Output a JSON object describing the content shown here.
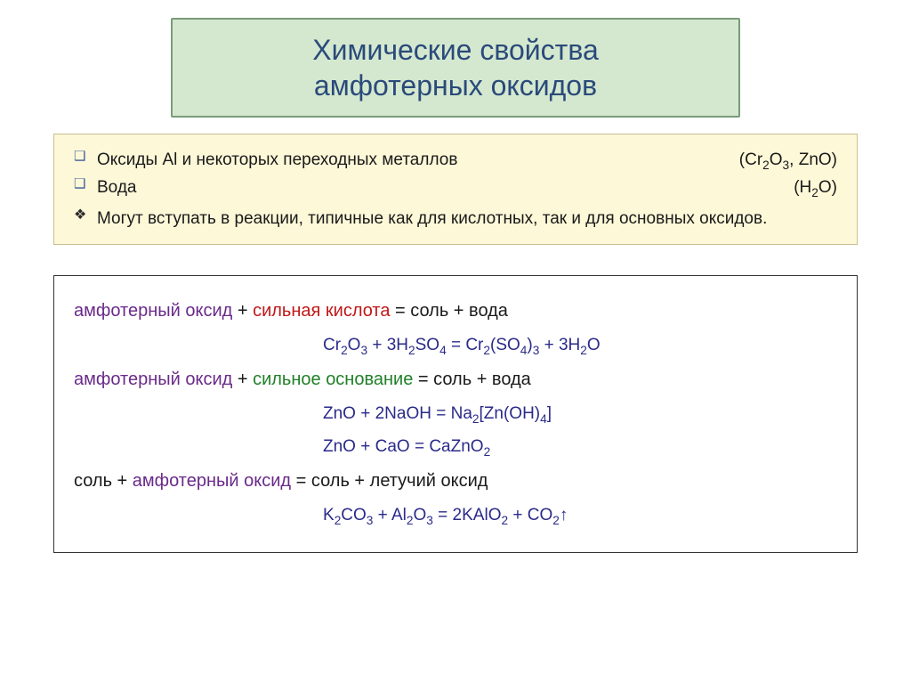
{
  "title": {
    "line1": "Химические свойства",
    "line2": "амфотерных оксидов",
    "bg_color": "#d4e8cf",
    "border_color": "#7a9a7a",
    "text_color": "#2a4a7a",
    "fontsize": 32
  },
  "context": {
    "bg_color": "#fdf8d8",
    "border_color": "#c8c090",
    "items": [
      {
        "bullet": "square",
        "text": "Оксиды Al и некоторых переходных металлов",
        "formula_prefix": "(Cr",
        "formula_sub1": "2",
        "formula_mid": "O",
        "formula_sub2": "3",
        "formula_suffix": ", ZnO)"
      },
      {
        "bullet": "square",
        "text": "Вода",
        "formula_prefix": "(H",
        "formula_sub1": "2",
        "formula_mid": "O)",
        "formula_sub2": "",
        "formula_suffix": ""
      }
    ],
    "note": {
      "bullet": "diamond",
      "text": "Могут вступать в реакции, типичные как для кислотных, так и для основных оксидов."
    }
  },
  "reactions": {
    "colors": {
      "amphoteric": "#6a2a8a",
      "acid": "#c01818",
      "base": "#208028",
      "equation": "#2a2a8a",
      "plain": "#1a1a1a"
    },
    "blocks": [
      {
        "scheme": [
          {
            "t": "амфотерный оксид",
            "c": "amf"
          },
          {
            "t": " + ",
            "c": ""
          },
          {
            "t": "сильная кислота",
            "c": "acid"
          },
          {
            "t": " = соль + вода",
            "c": ""
          }
        ],
        "equations": [
          "Cr₂O₃ + 3H₂SO₄  = Cr₂(SO₄)₃ + 3H₂O"
        ]
      },
      {
        "scheme": [
          {
            "t": "амфотерный оксид",
            "c": "amf"
          },
          {
            "t": " + ",
            "c": ""
          },
          {
            "t": "сильное основание",
            "c": "base"
          },
          {
            "t": " = соль + вода",
            "c": ""
          }
        ],
        "equations": [
          "ZnO + 2NaOH = Na₂[Zn(OH)₄]",
          "ZnO + CaO = CaZnO₂"
        ]
      },
      {
        "scheme": [
          {
            "t": "соль + ",
            "c": ""
          },
          {
            "t": "амфотерный оксид",
            "c": "amf"
          },
          {
            "t": " = соль + летучий оксид",
            "c": ""
          }
        ],
        "equations": [
          "K₂CO₃ + Al₂O₃ = 2KAlO₂ + CO₂↑"
        ]
      }
    ]
  }
}
